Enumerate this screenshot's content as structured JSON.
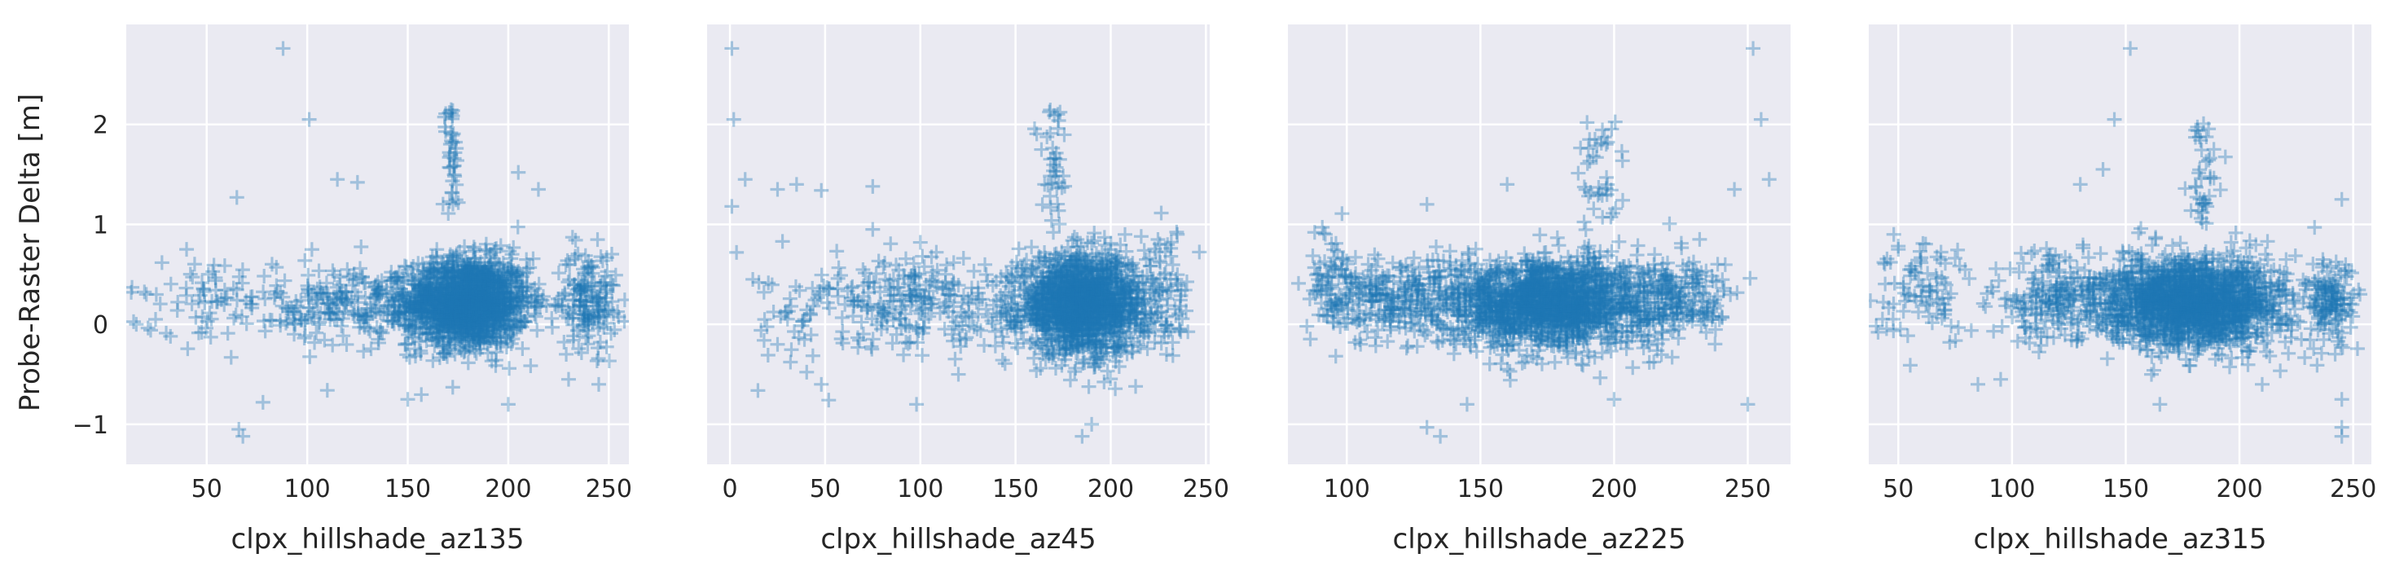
{
  "chart_data": {
    "type": "scatter",
    "marker": "+",
    "color": "#1f77b4",
    "background": "#eaeaf2",
    "grid": true,
    "sharey": true,
    "ylabel": "Probe-Raster Delta [m]",
    "ylim": [
      -1.4,
      3.0
    ],
    "yticks": [
      {
        "value": -1,
        "label": "−1"
      },
      {
        "value": 0,
        "label": "0"
      },
      {
        "value": 1,
        "label": "1"
      },
      {
        "value": 2,
        "label": "2"
      }
    ],
    "panels": [
      {
        "xlabel": "clpx_hillshade_az135",
        "xlim": [
          10,
          260
        ],
        "xticks": [
          {
            "value": 50,
            "label": "50"
          },
          {
            "value": 100,
            "label": "100"
          },
          {
            "value": 150,
            "label": "150"
          },
          {
            "value": 200,
            "label": "200"
          },
          {
            "value": 250,
            "label": "250"
          }
        ],
        "cluster": {
          "x_center": 180,
          "x_spread": 15,
          "y_center": 0.22,
          "y_spread": 0.22,
          "count": 1600
        },
        "wing_clusters": [
          {
            "x_center": 240,
            "x_spread": 7,
            "y_center": 0.25,
            "y_spread": 0.25,
            "count": 160
          },
          {
            "x_center": 125,
            "x_spread": 20,
            "y_center": 0.2,
            "y_spread": 0.2,
            "count": 220
          },
          {
            "x_center": 60,
            "x_spread": 25,
            "y_center": 0.25,
            "y_spread": 0.2,
            "count": 90
          }
        ],
        "spike": {
          "x_center": 172,
          "x_spread": 2,
          "y_min": 1.0,
          "y_max": 2.15,
          "count": 40
        },
        "outliers": [
          {
            "x": 88,
            "y": 2.76
          },
          {
            "x": 101,
            "y": 2.05
          },
          {
            "x": 66,
            "y": -1.05
          },
          {
            "x": 68,
            "y": -1.12
          },
          {
            "x": 78,
            "y": -0.78
          },
          {
            "x": 65,
            "y": 1.27
          },
          {
            "x": 115,
            "y": 1.45
          },
          {
            "x": 125,
            "y": 1.42
          },
          {
            "x": 205,
            "y": 1.52
          },
          {
            "x": 215,
            "y": 1.35
          },
          {
            "x": 15,
            "y": 0.0
          },
          {
            "x": 20,
            "y": 0.3
          },
          {
            "x": 40,
            "y": 0.75
          },
          {
            "x": 32,
            "y": -0.12
          },
          {
            "x": 110,
            "y": -0.66
          },
          {
            "x": 230,
            "y": -0.55
          },
          {
            "x": 200,
            "y": -0.8
          },
          {
            "x": 150,
            "y": -0.75
          },
          {
            "x": 245,
            "y": -0.6
          }
        ]
      },
      {
        "xlabel": "clpx_hillshade_az45",
        "xlim": [
          -12,
          252
        ],
        "xticks": [
          {
            "value": 0,
            "label": "0"
          },
          {
            "value": 50,
            "label": "50"
          },
          {
            "value": 100,
            "label": "100"
          },
          {
            "value": 150,
            "label": "150"
          },
          {
            "value": 200,
            "label": "200"
          },
          {
            "value": 250,
            "label": "250"
          }
        ],
        "cluster": {
          "x_center": 185,
          "x_spread": 17,
          "y_center": 0.2,
          "y_spread": 0.24,
          "count": 1600
        },
        "wing_clusters": [
          {
            "x_center": 100,
            "x_spread": 25,
            "y_center": 0.2,
            "y_spread": 0.22,
            "count": 220
          },
          {
            "x_center": 40,
            "x_spread": 20,
            "y_center": 0.1,
            "y_spread": 0.3,
            "count": 60
          },
          {
            "x_center": 230,
            "x_spread": 6,
            "y_center": 0.3,
            "y_spread": 0.3,
            "count": 60
          }
        ],
        "spike": {
          "x_center": 170,
          "x_spread": 4,
          "y_min": 1.0,
          "y_max": 2.15,
          "count": 40
        },
        "outliers": [
          {
            "x": 1,
            "y": 2.76
          },
          {
            "x": 2,
            "y": 2.05
          },
          {
            "x": 1,
            "y": 1.18
          },
          {
            "x": 8,
            "y": 1.45
          },
          {
            "x": 25,
            "y": 1.35
          },
          {
            "x": 35,
            "y": 1.4
          },
          {
            "x": 48,
            "y": 1.34
          },
          {
            "x": 75,
            "y": 1.38
          },
          {
            "x": 75,
            "y": 0.95
          },
          {
            "x": 100,
            "y": 0.82
          },
          {
            "x": 185,
            "y": -1.12
          },
          {
            "x": 190,
            "y": -1.0
          },
          {
            "x": 48,
            "y": -0.6
          },
          {
            "x": 98,
            "y": -0.8
          },
          {
            "x": 120,
            "y": -0.5
          },
          {
            "x": 235,
            "y": 0.9
          },
          {
            "x": 25,
            "y": -0.2
          },
          {
            "x": 12,
            "y": 0.45
          }
        ]
      },
      {
        "xlabel": "clpx_hillshade_az225",
        "xlim": [
          78,
          266
        ],
        "xticks": [
          {
            "value": 100,
            "label": "100"
          },
          {
            "value": 150,
            "label": "150"
          },
          {
            "value": 200,
            "label": "200"
          },
          {
            "value": 250,
            "label": "250"
          }
        ],
        "cluster": {
          "x_center": 175,
          "x_spread": 20,
          "y_center": 0.22,
          "y_spread": 0.22,
          "count": 1700
        },
        "wing_clusters": [
          {
            "x_center": 115,
            "x_spread": 13,
            "y_center": 0.25,
            "y_spread": 0.22,
            "count": 240
          },
          {
            "x_center": 225,
            "x_spread": 10,
            "y_center": 0.25,
            "y_spread": 0.2,
            "count": 180
          },
          {
            "x_center": 95,
            "x_spread": 5,
            "y_center": 0.45,
            "y_spread": 0.25,
            "count": 50
          }
        ],
        "spike": {
          "x_center": 195,
          "x_spread": 5,
          "y_min": 1.0,
          "y_max": 2.15,
          "count": 40
        },
        "outliers": [
          {
            "x": 252,
            "y": 2.76
          },
          {
            "x": 255,
            "y": 2.05
          },
          {
            "x": 130,
            "y": -1.03
          },
          {
            "x": 135,
            "y": -1.12
          },
          {
            "x": 250,
            "y": -0.8
          },
          {
            "x": 88,
            "y": 0.92
          },
          {
            "x": 92,
            "y": 0.9
          },
          {
            "x": 130,
            "y": 1.2
          },
          {
            "x": 245,
            "y": 1.35
          },
          {
            "x": 258,
            "y": 1.45
          },
          {
            "x": 232,
            "y": 0.85
          },
          {
            "x": 160,
            "y": 1.4
          },
          {
            "x": 145,
            "y": -0.8
          },
          {
            "x": 200,
            "y": -0.75
          }
        ]
      },
      {
        "xlabel": "clpx_hillshade_az315",
        "xlim": [
          37,
          258
        ],
        "xticks": [
          {
            "value": 50,
            "label": "50"
          },
          {
            "value": 100,
            "label": "100"
          },
          {
            "value": 150,
            "label": "150"
          },
          {
            "value": 200,
            "label": "200"
          },
          {
            "value": 250,
            "label": "250"
          }
        ],
        "cluster": {
          "x_center": 180,
          "x_spread": 20,
          "y_center": 0.22,
          "y_spread": 0.22,
          "count": 1700
        },
        "wing_clusters": [
          {
            "x_center": 120,
            "x_spread": 15,
            "y_center": 0.25,
            "y_spread": 0.22,
            "count": 220
          },
          {
            "x_center": 240,
            "x_spread": 6,
            "y_center": 0.2,
            "y_spread": 0.2,
            "count": 130
          },
          {
            "x_center": 62,
            "x_spread": 12,
            "y_center": 0.3,
            "y_spread": 0.25,
            "count": 90
          }
        ],
        "spike": {
          "x_center": 185,
          "x_spread": 3,
          "y_min": 1.0,
          "y_max": 2.15,
          "count": 40
        },
        "outliers": [
          {
            "x": 152,
            "y": 2.76
          },
          {
            "x": 145,
            "y": 2.05
          },
          {
            "x": 245,
            "y": -1.03
          },
          {
            "x": 245,
            "y": -1.12
          },
          {
            "x": 245,
            "y": -0.75
          },
          {
            "x": 140,
            "y": 1.55
          },
          {
            "x": 130,
            "y": 1.4
          },
          {
            "x": 245,
            "y": 1.25
          },
          {
            "x": 48,
            "y": 0.9
          },
          {
            "x": 50,
            "y": 0.75
          },
          {
            "x": 85,
            "y": -0.6
          },
          {
            "x": 95,
            "y": -0.55
          },
          {
            "x": 165,
            "y": -0.8
          },
          {
            "x": 210,
            "y": -0.6
          }
        ]
      }
    ]
  }
}
